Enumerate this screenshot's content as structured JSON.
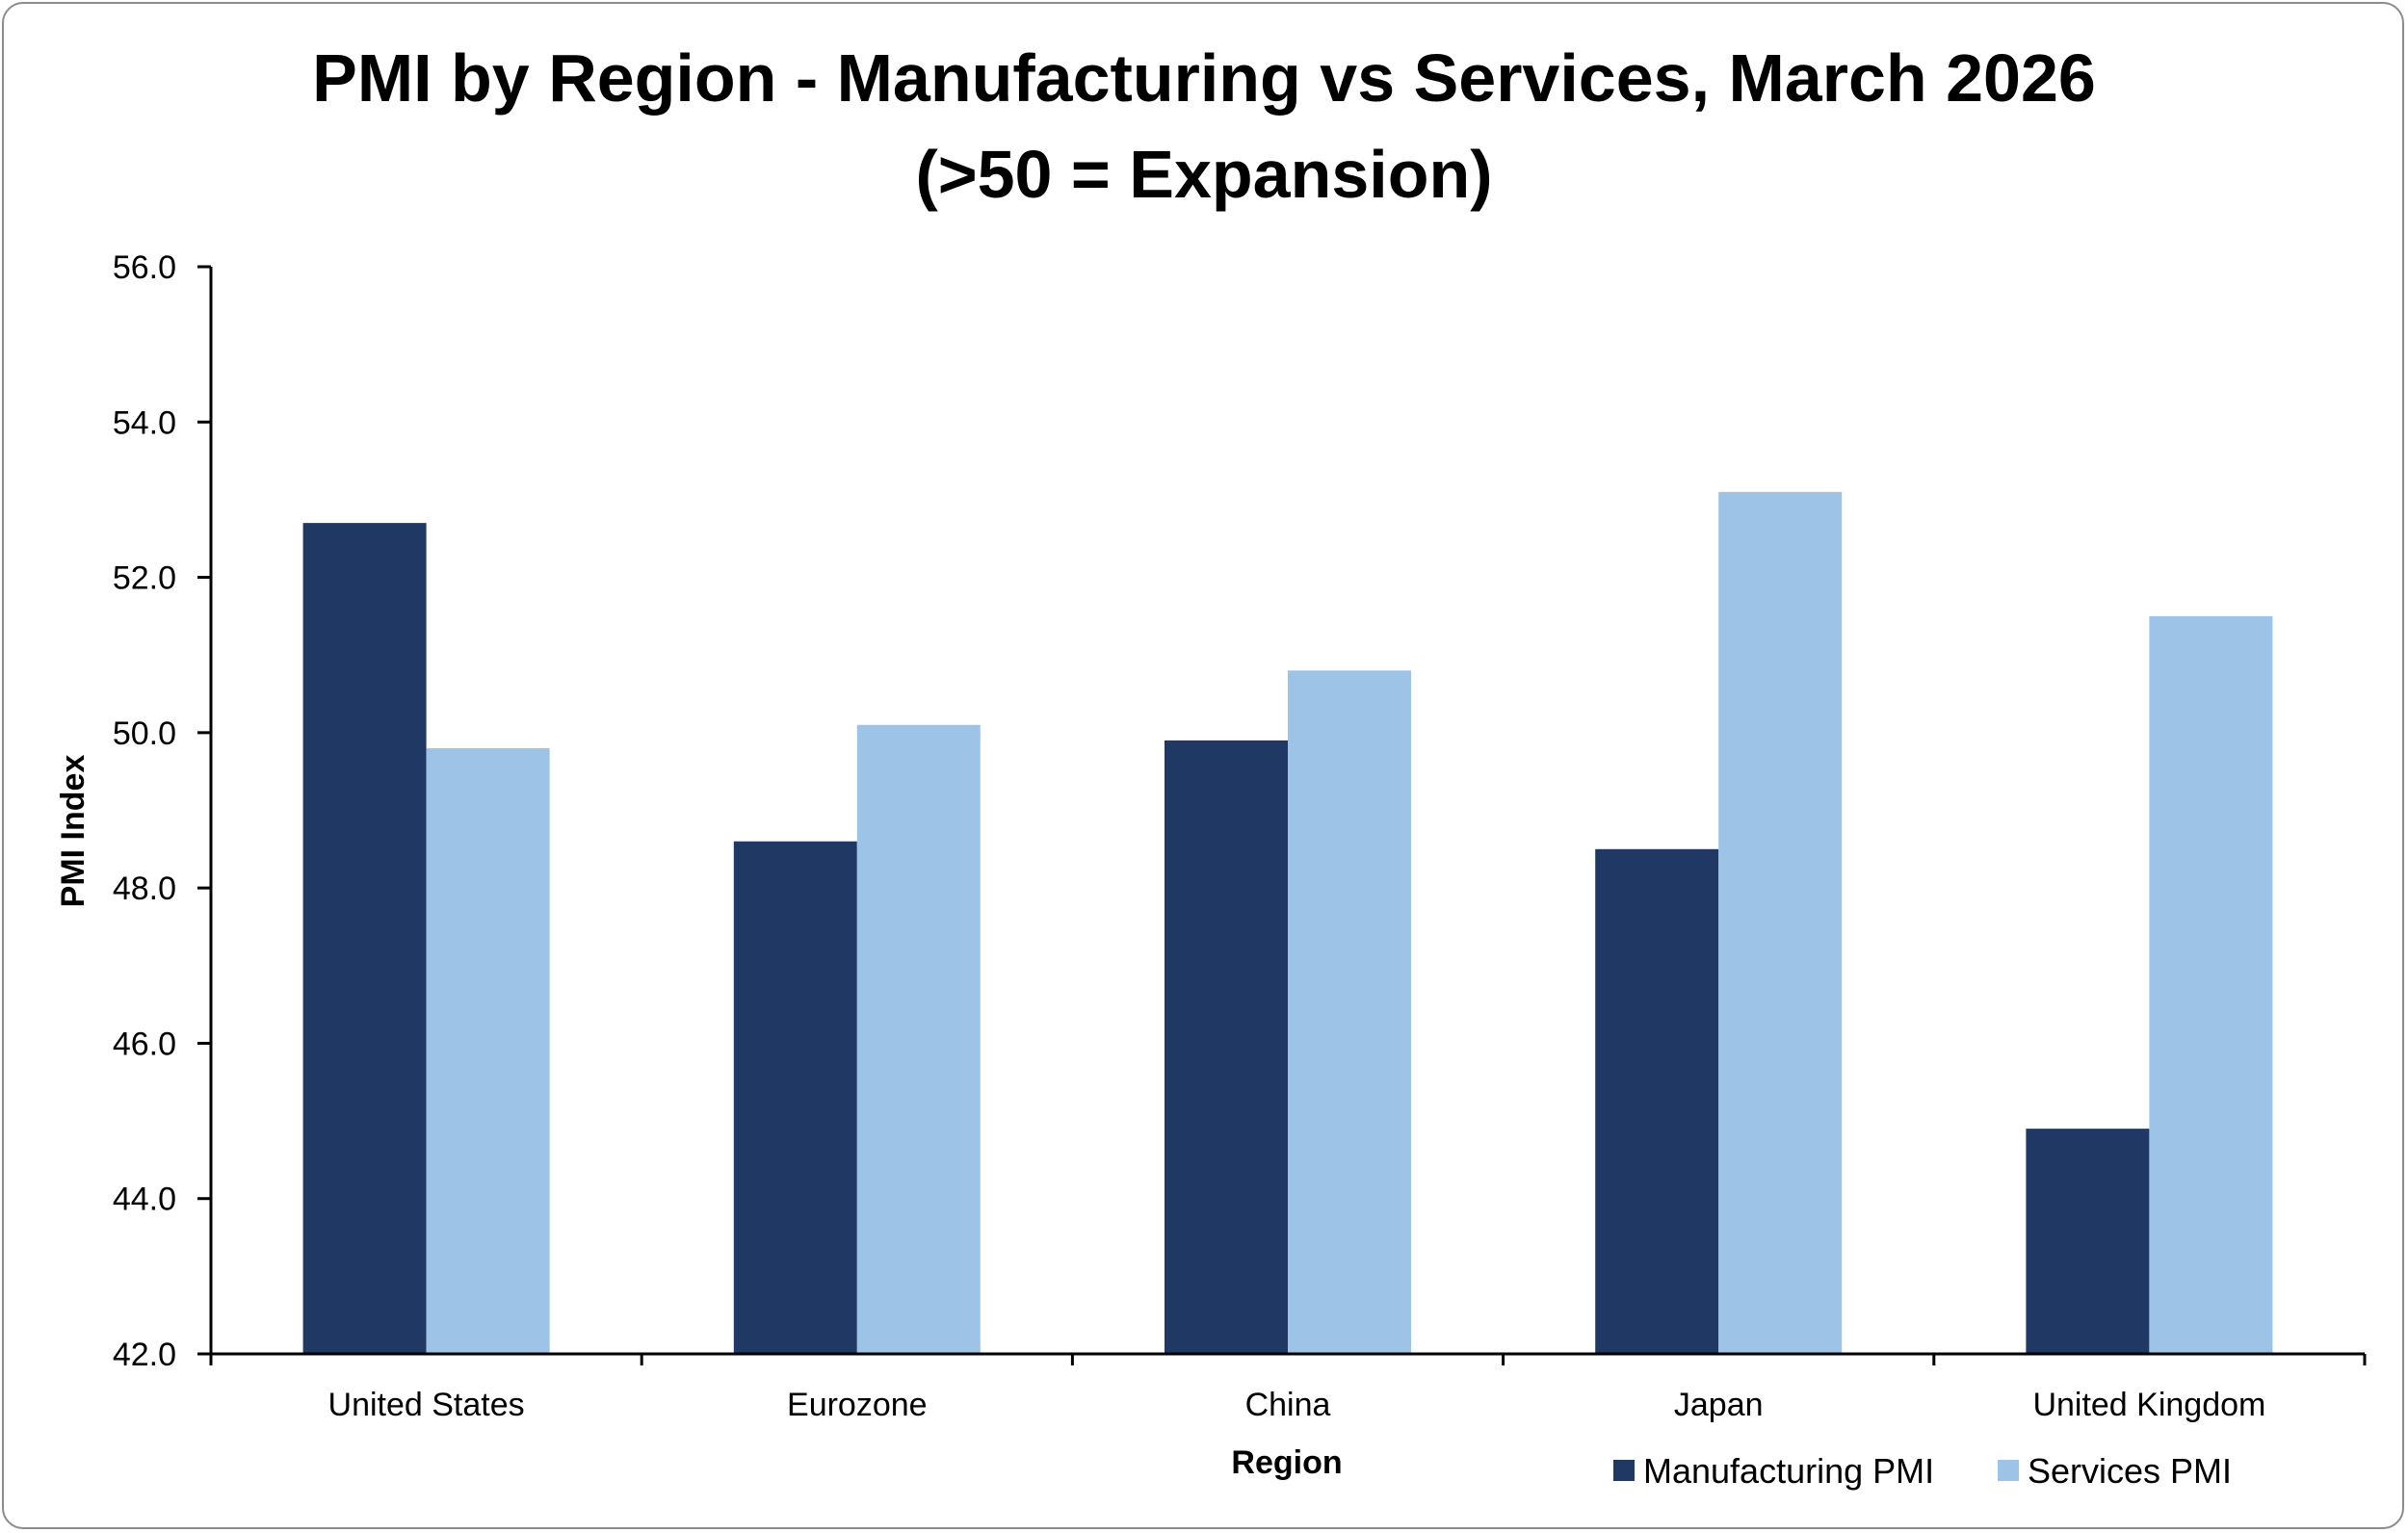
{
  "chart_data": {
    "type": "bar",
    "title": "PMI by Region - Manufacturing vs Services, March 2026",
    "subtitle": "(>50 = Expansion)",
    "xlabel": "Region",
    "ylabel": "PMI Index",
    "categories": [
      "United States",
      "Eurozone",
      "China",
      "Japan",
      "United Kingdom"
    ],
    "series": [
      {
        "name": "Manufacturing PMI",
        "color": "#203864",
        "values": [
          52.7,
          48.6,
          49.9,
          48.5,
          44.9
        ]
      },
      {
        "name": "Services PMI",
        "color": "#9DC3E6",
        "values": [
          49.8,
          50.1,
          50.8,
          53.1,
          51.5
        ]
      }
    ],
    "ylim": [
      42.0,
      56.0
    ],
    "yticks": [
      "42.0",
      "44.0",
      "46.0",
      "48.0",
      "50.0",
      "52.0",
      "54.0",
      "56.0"
    ],
    "grid": false,
    "legend_position": "bottom-right"
  }
}
